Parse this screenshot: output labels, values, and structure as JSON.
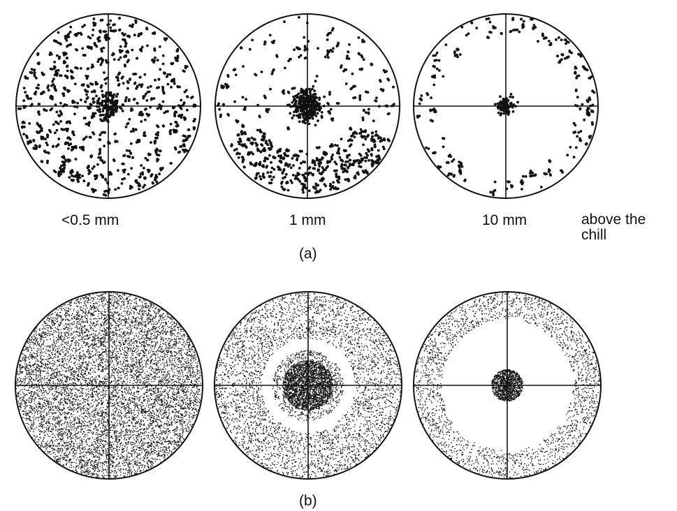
{
  "figure": {
    "row_a": {
      "label": "(a)",
      "plots": [
        {
          "caption": "<0.5 mm",
          "pattern": "scattered clusters, weak central spot"
        },
        {
          "caption": "1 mm",
          "pattern": "central cluster plus peripheral band"
        },
        {
          "caption": "10 mm",
          "pattern": "small central cluster, sparse rim"
        }
      ],
      "trailing_label": "above the\nchill"
    },
    "row_b": {
      "label": "(b)",
      "plots": [
        {
          "pattern": "uniform dense random"
        },
        {
          "pattern": "dense central disc with ring"
        },
        {
          "pattern": "small central disc with outer ring"
        }
      ]
    },
    "ink_color": "#111111"
  }
}
